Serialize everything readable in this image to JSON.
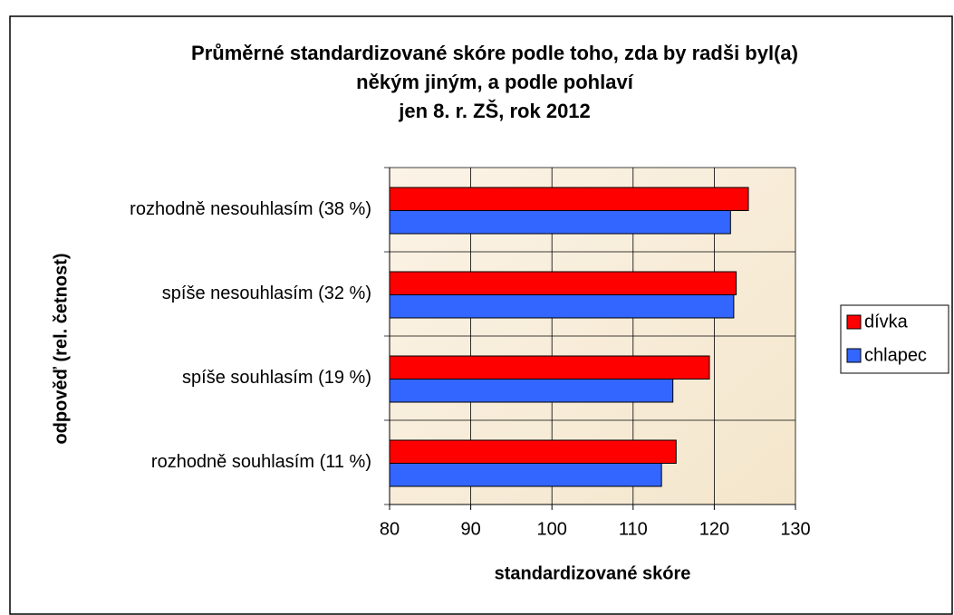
{
  "chart_data": {
    "type": "hbar",
    "title": [
      "Průměrné standardizované skóre podle toho, zda by radši byl(a)",
      "někým jiným, a podle pohlaví",
      "jen 8. r. ZŠ, rok 2012"
    ],
    "x_label": "standardizované skóre",
    "y_label": "odpověď (rel. četnost)",
    "categories": [
      "rozhodně nesouhlasím (38 %)",
      "spíše nesouhlasím (32 %)",
      "spíše souhlasím (19 %)",
      "rozhodně souhlasím (11 %)"
    ],
    "series": [
      {
        "name": "dívka",
        "color": "#ff0000",
        "values": [
          124.2,
          122.7,
          119.4,
          115.3
        ]
      },
      {
        "name": "chlapec",
        "color": "#3366ff",
        "values": [
          122.0,
          122.4,
          114.9,
          113.5
        ]
      }
    ],
    "xlim": [
      80,
      130
    ],
    "xticks": [
      80,
      90,
      100,
      110,
      120,
      130
    ],
    "grid": true,
    "legend": "right"
  }
}
